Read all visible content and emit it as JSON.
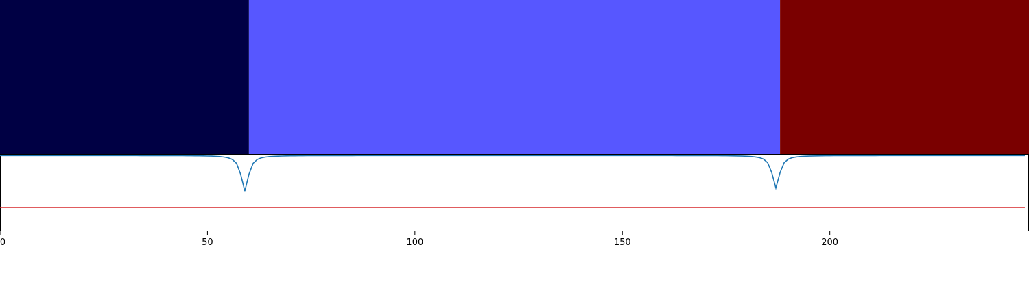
{
  "chart_data": {
    "type": "segmentation-timeline",
    "colors": {
      "segment_1": "#000044",
      "segment_2": "#5757ff",
      "segment_3": "#7a0000",
      "signal_line": "#1f77b4",
      "threshold_line": "#d62728",
      "separator": "#ffffff"
    },
    "xlim": [
      0,
      248
    ],
    "x_ticks": [
      0,
      50,
      100,
      150,
      200
    ],
    "segment_rows": [
      {
        "name": "row-1",
        "segments": [
          {
            "start": 0,
            "end": 60,
            "color_key": "segment_1"
          },
          {
            "start": 60,
            "end": 188,
            "color_key": "segment_2"
          },
          {
            "start": 188,
            "end": 248,
            "color_key": "segment_3"
          }
        ]
      },
      {
        "name": "row-2",
        "segments": [
          {
            "start": 0,
            "end": 60,
            "color_key": "segment_1"
          },
          {
            "start": 60,
            "end": 188,
            "color_key": "segment_2"
          },
          {
            "start": 188,
            "end": 248,
            "color_key": "segment_3"
          }
        ]
      }
    ],
    "signal": {
      "ylim": [
        0,
        1
      ],
      "threshold": 0.31,
      "baseline": 0.98,
      "dips": [
        {
          "x": 59,
          "value": 0.52
        },
        {
          "x": 187,
          "value": 0.56
        }
      ],
      "x_end": 247
    }
  }
}
